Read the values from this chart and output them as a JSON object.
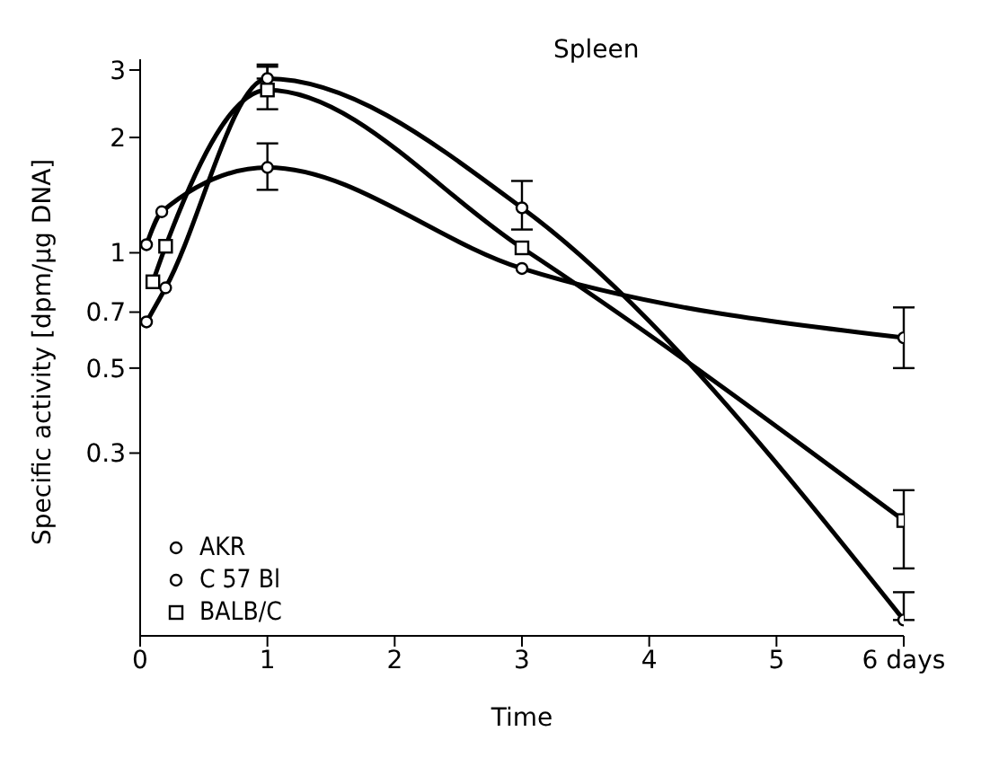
{
  "chart_data": {
    "type": "line",
    "title": "Spleen",
    "xlabel": "Time",
    "ylabel": "Specific activity [dpm/µg DNA]",
    "log": "y",
    "xlim": [
      0,
      6
    ],
    "xticks": [
      0,
      1,
      2,
      3,
      4,
      5,
      {
        "value": 6,
        "label": "6 days"
      }
    ],
    "ylim": [
      0.1,
      3.2
    ],
    "yticks": [
      0.3,
      0.5,
      0.7,
      1,
      2,
      3
    ],
    "legend": "bottom left",
    "line_style": "solid",
    "series": [
      {
        "name": "AKR",
        "color": "#000000",
        "marker": "circle",
        "x": [
          0.05,
          0.17,
          1,
          3,
          6
        ],
        "values": [
          1.05,
          1.28,
          1.67,
          0.91,
          0.6
        ],
        "errors": [
          null,
          null,
          [
            1.46,
            1.93
          ],
          null,
          [
            0.5,
            0.72
          ]
        ]
      },
      {
        "name": "C 57 Bl",
        "color": "#000000",
        "marker": "circle",
        "x": [
          0.05,
          0.2,
          1,
          3,
          6
        ],
        "values": [
          0.66,
          0.81,
          2.85,
          1.31,
          0.11
        ],
        "errors": [
          null,
          null,
          [
            2.85,
            3.06
          ],
          [
            1.15,
            1.54
          ],
          [
            0.11,
            0.13
          ]
        ]
      },
      {
        "name": "BALB/C",
        "color": "#000000",
        "marker": "square",
        "x": [
          0.1,
          0.2,
          1,
          3,
          6
        ],
        "values": [
          0.84,
          1.04,
          2.66,
          1.03,
          0.2
        ],
        "errors": [
          null,
          null,
          [
            2.37,
            3.1
          ],
          null,
          [
            0.15,
            0.24
          ]
        ]
      }
    ]
  }
}
